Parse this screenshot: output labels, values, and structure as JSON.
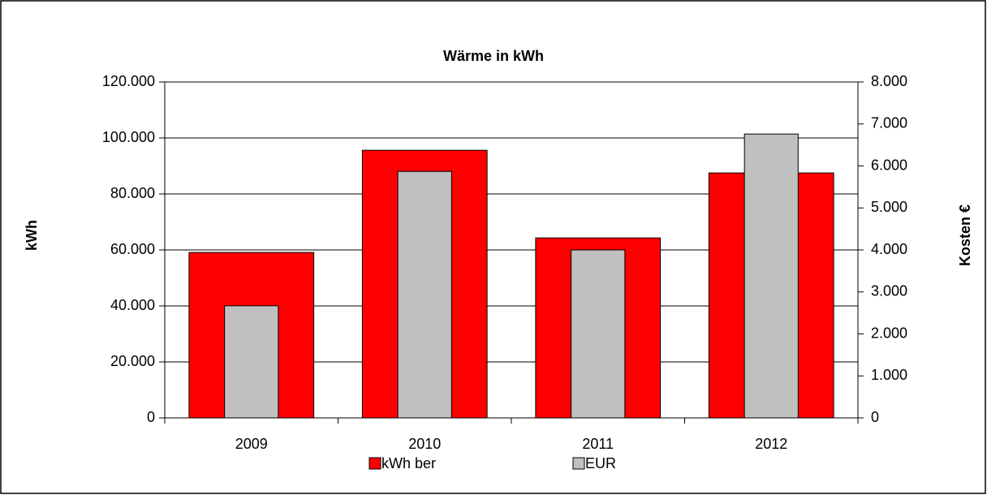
{
  "chart_data": {
    "type": "bar",
    "title": "Wärme in kWh",
    "categories": [
      "2009",
      "2010",
      "2011",
      "2012"
    ],
    "series": [
      {
        "name": "kWh ber",
        "color": "#ff0000",
        "values": [
          59100,
          95600,
          64300,
          87500
        ]
      },
      {
        "name": "EUR",
        "color": "#c0c0c0",
        "axis": "y2",
        "values": [
          2670,
          5870,
          4000,
          6760
        ]
      }
    ],
    "ylabel": "kWh",
    "y2label": "Kosten €",
    "ylim": [
      0,
      120000
    ],
    "yticks": [
      0,
      {
        "value": 20000,
        "label": "20.000"
      },
      {
        "value": 40000,
        "label": "40.000"
      },
      {
        "value": 60000,
        "label": "60.000"
      },
      {
        "value": 80000,
        "label": "80.000"
      },
      {
        "value": 100000,
        "label": "100.000"
      },
      {
        "value": 120000,
        "label": "120.000"
      }
    ],
    "y2lim": [
      0,
      8000
    ],
    "y2ticks": [
      0,
      {
        "value": 1000,
        "label": "1.000"
      },
      {
        "value": 2000,
        "label": "2.000"
      },
      {
        "value": 3000,
        "label": "3.000"
      },
      {
        "value": 4000,
        "label": "4.000"
      },
      {
        "value": 5000,
        "label": "5.000"
      },
      {
        "value": 6000,
        "label": "6.000"
      },
      {
        "value": 7000,
        "label": "7.000"
      },
      {
        "value": 8000,
        "label": "8.000"
      }
    ],
    "grid": true,
    "legend": "bottom"
  }
}
